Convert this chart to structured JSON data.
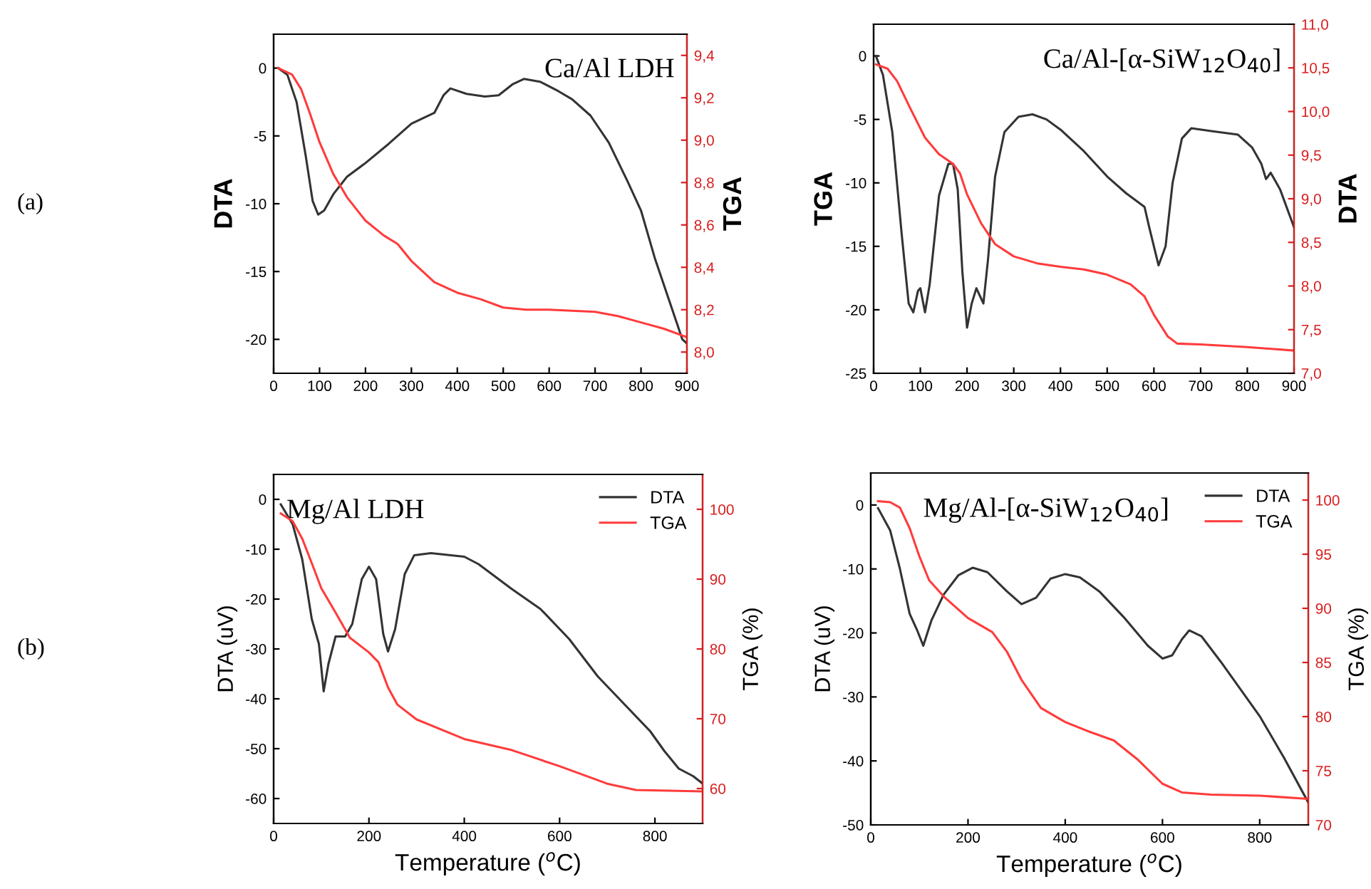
{
  "chart_data": [
    {
      "type": "line",
      "title": "Ca/Al LDH",
      "ylabel": "DTA",
      "y2label": "TGA",
      "annotations": [
        "(a)"
      ],
      "xlim": [
        0,
        900
      ],
      "xticks": [
        0,
        100,
        200,
        300,
        400,
        500,
        600,
        700,
        800,
        900
      ],
      "ylim": [
        -22.5,
        2.5
      ],
      "yticks": [
        -20,
        -15,
        -10,
        -5,
        0
      ],
      "y2lim": [
        7.9,
        9.5
      ],
      "y2ticks": [
        {
          "value": 8.0,
          "label": "8,0"
        },
        {
          "value": 8.2,
          "label": "8,2"
        },
        {
          "value": 8.4,
          "label": "8,4"
        },
        {
          "value": 8.6,
          "label": "8,6"
        },
        {
          "value": 8.8,
          "label": "8,8"
        },
        {
          "value": 9.0,
          "label": "9,0"
        },
        {
          "value": 9.2,
          "label": "9,2"
        },
        {
          "value": 9.4,
          "label": "9,4"
        }
      ],
      "grid": false,
      "legend": false,
      "series": [
        {
          "color": "#333333",
          "x": [
            10,
            30,
            50,
            70,
            85,
            97,
            110,
            130,
            160,
            200,
            250,
            300,
            350,
            370,
            385,
            420,
            460,
            490,
            520,
            545,
            580,
            620,
            650,
            690,
            730,
            770,
            800,
            830,
            860,
            880,
            890,
            900
          ],
          "values": [
            0,
            -0.5,
            -2.5,
            -6.5,
            -9.8,
            -10.8,
            -10.5,
            -9.3,
            -8.0,
            -7.0,
            -5.6,
            -4.1,
            -3.3,
            -2.0,
            -1.5,
            -1.9,
            -2.1,
            -2.0,
            -1.2,
            -0.8,
            -1.0,
            -1.7,
            -2.3,
            -3.5,
            -5.5,
            -8.3,
            -10.5,
            -14,
            -17,
            -19,
            -20,
            -20.3
          ]
        },
        {
          "color": "#ff3b3b",
          "axis": "y2",
          "x": [
            10,
            40,
            60,
            80,
            100,
            130,
            160,
            200,
            240,
            270,
            300,
            350,
            400,
            450,
            500,
            550,
            600,
            700,
            750,
            800,
            850,
            900
          ],
          "values": [
            9.34,
            9.31,
            9.24,
            9.12,
            8.99,
            8.84,
            8.73,
            8.62,
            8.55,
            8.51,
            8.43,
            8.33,
            8.28,
            8.25,
            8.21,
            8.2,
            8.2,
            8.19,
            8.17,
            8.14,
            8.11,
            8.07
          ]
        }
      ]
    },
    {
      "type": "line",
      "title": "Ca/Al-[α-SiW$_{12}$O$_{40}$]",
      "ylabel": "TGA",
      "y2label": "DTA",
      "xlim": [
        0,
        900
      ],
      "xticks": [
        0,
        100,
        200,
        300,
        400,
        500,
        600,
        700,
        800,
        900
      ],
      "ylim": [
        -25,
        2.5
      ],
      "yticks": [
        -25,
        -20,
        -15,
        -10,
        -5,
        0
      ],
      "y2lim": [
        7.0,
        11.0
      ],
      "y2ticks": [
        {
          "value": 7.0,
          "label": "7,0"
        },
        {
          "value": 7.5,
          "label": "7,5"
        },
        {
          "value": 8.0,
          "label": "8,0"
        },
        {
          "value": 8.5,
          "label": "8,5"
        },
        {
          "value": 9.0,
          "label": "9,0"
        },
        {
          "value": 9.5,
          "label": "9,5"
        },
        {
          "value": 10.0,
          "label": "10,0"
        },
        {
          "value": 10.5,
          "label": "10,5"
        },
        {
          "value": 11.0,
          "label": "11,0"
        }
      ],
      "grid": false,
      "legend": false,
      "series": [
        {
          "color": "#333333",
          "x": [
            5,
            20,
            40,
            60,
            75,
            85,
            95,
            100,
            110,
            120,
            140,
            160,
            170,
            180,
            190,
            200,
            210,
            220,
            235,
            245,
            260,
            280,
            310,
            340,
            370,
            400,
            450,
            500,
            540,
            580,
            590,
            610,
            625,
            640,
            660,
            680,
            720,
            780,
            810,
            830,
            840,
            850,
            870,
            900
          ],
          "values": [
            0,
            -1.5,
            -6,
            -14,
            -19.5,
            -20.2,
            -18.5,
            -18.3,
            -20.2,
            -18,
            -11,
            -8.5,
            -8.5,
            -10.5,
            -17,
            -21.4,
            -19.5,
            -18.3,
            -19.5,
            -16,
            -9.5,
            -6,
            -4.8,
            -4.6,
            -5.0,
            -5.8,
            -7.5,
            -9.5,
            -10.8,
            -11.9,
            -13.5,
            -16.5,
            -15,
            -10,
            -6.5,
            -5.7,
            -5.9,
            -6.2,
            -7.2,
            -8.5,
            -9.7,
            -9.2,
            -10.5,
            -13.5
          ]
        },
        {
          "color": "#ff3b3b",
          "axis": "y2",
          "x": [
            5,
            30,
            50,
            80,
            110,
            140,
            170,
            185,
            200,
            230,
            260,
            300,
            350,
            400,
            450,
            500,
            550,
            580,
            600,
            630,
            650,
            700,
            800,
            900
          ],
          "values": [
            10.54,
            10.49,
            10.35,
            10.02,
            9.7,
            9.51,
            9.4,
            9.29,
            9.05,
            8.72,
            8.48,
            8.34,
            8.26,
            8.22,
            8.19,
            8.13,
            8.02,
            7.88,
            7.67,
            7.42,
            7.34,
            7.33,
            7.3,
            7.26
          ]
        }
      ]
    },
    {
      "type": "line",
      "title": "Mg/Al LDH",
      "xlabel": "Temperature ($^{o}$C)",
      "ylabel": "DTA (uV)",
      "y2label": "TGA (%)",
      "annotations": [
        "(b)"
      ],
      "xlim": [
        0,
        900
      ],
      "xticks": [
        0,
        200,
        400,
        600,
        800
      ],
      "ylim": [
        -65,
        5
      ],
      "yticks": [
        -60,
        -50,
        -40,
        -30,
        -20,
        -10,
        0
      ],
      "y2lim": [
        55,
        105
      ],
      "y2ticks": [
        60,
        70,
        80,
        90,
        100
      ],
      "grid": false,
      "legend": "top right",
      "series": [
        {
          "name": "DTA",
          "color": "#333333",
          "x": [
            15,
            40,
            60,
            80,
            95,
            105,
            115,
            130,
            150,
            165,
            185,
            200,
            215,
            230,
            240,
            255,
            275,
            295,
            330,
            400,
            430,
            500,
            560,
            620,
            680,
            740,
            790,
            820,
            850,
            880,
            900
          ],
          "values": [
            -1,
            -5,
            -12,
            -24,
            -29,
            -38.5,
            -33,
            -27.5,
            -27.5,
            -25,
            -16,
            -13.5,
            -16,
            -27,
            -30.5,
            -26,
            -15,
            -11.2,
            -10.8,
            -11.5,
            -13,
            -18,
            -22,
            -28,
            -35.5,
            -41.5,
            -46.5,
            -50.5,
            -54,
            -55.5,
            -57
          ]
        },
        {
          "name": "TGA",
          "color": "#ff3b3b",
          "axis": "y2",
          "x": [
            15,
            40,
            60,
            80,
            100,
            130,
            160,
            200,
            220,
            240,
            260,
            300,
            400,
            500,
            600,
            700,
            760,
            900
          ],
          "values": [
            99.4,
            98.3,
            95.8,
            92.3,
            88.7,
            85.2,
            81.6,
            79.5,
            78.1,
            74.5,
            72.0,
            69.9,
            67.1,
            65.5,
            63.2,
            60.7,
            59.8,
            59.6
          ]
        }
      ]
    },
    {
      "type": "line",
      "title": "Mg/Al-[α-SiW$_{12}$O$_{40}$]",
      "xlabel": "Temperature ($^{o}$C)",
      "ylabel": "DTA (uV)",
      "y2label": "TGA (%)",
      "xlim": [
        0,
        900
      ],
      "xticks": [
        0,
        200,
        400,
        600,
        800
      ],
      "ylim": [
        -50,
        5
      ],
      "yticks": [
        -50,
        -40,
        -30,
        -20,
        -10,
        0
      ],
      "y2lim": [
        70,
        102.5
      ],
      "y2ticks": [
        70,
        75,
        80,
        85,
        90,
        95,
        100
      ],
      "grid": false,
      "legend": "top right",
      "series": [
        {
          "name": "DTA",
          "color": "#333333",
          "x": [
            15,
            40,
            60,
            80,
            95,
            108,
            125,
            150,
            180,
            210,
            240,
            280,
            310,
            340,
            370,
            400,
            430,
            470,
            520,
            570,
            600,
            620,
            640,
            655,
            680,
            720,
            800,
            850,
            900
          ],
          "values": [
            -0.5,
            -4,
            -10,
            -17,
            -19.5,
            -22,
            -18,
            -14,
            -11,
            -9.8,
            -10.5,
            -13.5,
            -15.5,
            -14.5,
            -11.5,
            -10.8,
            -11.3,
            -13.5,
            -17.5,
            -22,
            -24,
            -23.5,
            -21,
            -19.6,
            -20.5,
            -24.5,
            -33,
            -39.5,
            -46.5
          ]
        },
        {
          "name": "TGA",
          "color": "#ff3b3b",
          "axis": "y2",
          "x": [
            15,
            40,
            60,
            80,
            100,
            120,
            150,
            200,
            250,
            280,
            310,
            350,
            400,
            450,
            500,
            550,
            600,
            640,
            700,
            800,
            900
          ],
          "values": [
            99.9,
            99.8,
            99.3,
            97.4,
            94.8,
            92.6,
            91.1,
            89.1,
            87.8,
            86.0,
            83.4,
            80.8,
            79.5,
            78.6,
            77.8,
            76.0,
            73.8,
            73.0,
            72.8,
            72.7,
            72.4
          ]
        }
      ]
    }
  ]
}
